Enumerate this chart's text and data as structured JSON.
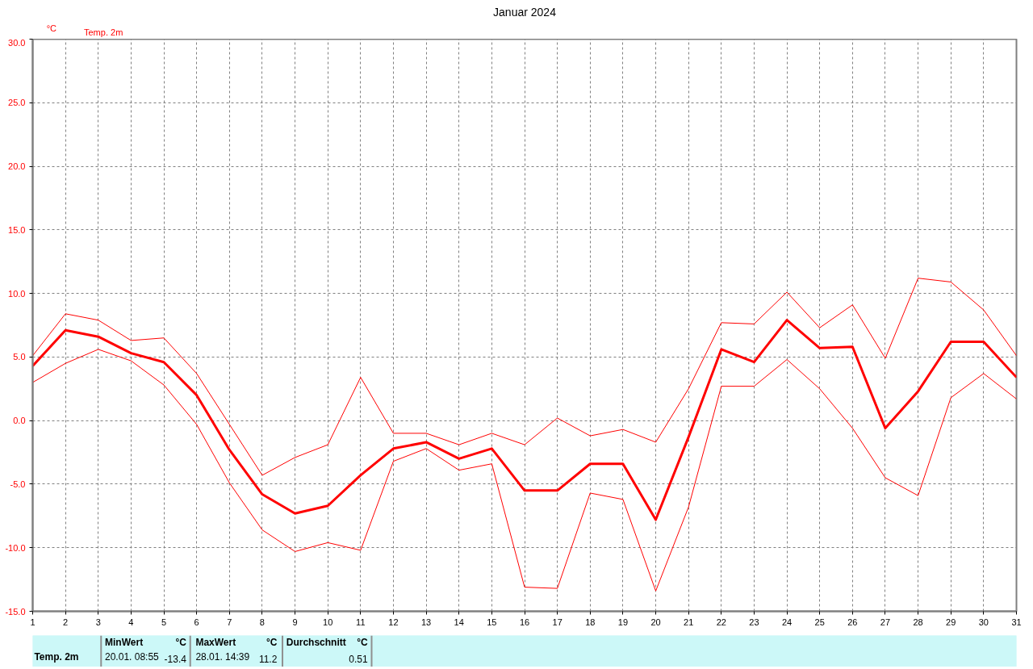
{
  "chart_data": {
    "type": "line",
    "title": "Januar 2024",
    "ylabel": "°C",
    "x": [
      1,
      2,
      3,
      4,
      5,
      6,
      7,
      8,
      9,
      10,
      11,
      12,
      13,
      14,
      15,
      16,
      17,
      18,
      19,
      20,
      21,
      22,
      23,
      24,
      25,
      26,
      27,
      28,
      29,
      30,
      31
    ],
    "series": [
      {
        "name": "Temp. 2m",
        "color": "#ff0000",
        "values": [
          4.3,
          7.1,
          6.6,
          5.3,
          4.6,
          2.0,
          -2.3,
          -5.8,
          -7.3,
          -6.7,
          -4.3,
          -2.2,
          -1.7,
          -3.0,
          -2.2,
          -5.5,
          -5.5,
          -3.4,
          -3.4,
          -7.8,
          -1.3,
          5.6,
          4.6,
          7.9,
          5.7,
          5.8,
          -0.6,
          2.3,
          6.2,
          6.2,
          3.4
        ]
      },
      {
        "color": "#ff0000",
        "values": [
          5.1,
          8.4,
          7.9,
          6.3,
          6.5,
          3.7,
          -0.3,
          -4.3,
          -2.9,
          -1.9,
          3.4,
          -1.0,
          -1.0,
          -1.9,
          -1.0,
          -1.9,
          0.2,
          -1.2,
          -0.7,
          -1.7,
          2.5,
          7.7,
          7.6,
          10.1,
          7.3,
          9.1,
          4.9,
          11.2,
          10.9,
          8.7,
          5.1
        ]
      },
      {
        "color": "#ff0000",
        "values": [
          3.0,
          4.5,
          5.6,
          4.7,
          2.8,
          -0.3,
          -4.9,
          -8.6,
          -10.3,
          -9.6,
          -10.2,
          -3.2,
          -2.2,
          -3.9,
          -3.4,
          -13.1,
          -13.2,
          -5.7,
          -6.2,
          -13.4,
          -6.8,
          2.7,
          2.7,
          4.8,
          2.5,
          -0.6,
          -4.5,
          -5.9,
          1.8,
          3.7,
          1.7
        ]
      }
    ],
    "xlim": [
      1,
      31
    ],
    "xticks": [
      1,
      2,
      3,
      4,
      5,
      6,
      7,
      8,
      9,
      10,
      11,
      12,
      13,
      14,
      15,
      16,
      17,
      18,
      19,
      20,
      21,
      22,
      23,
      24,
      25,
      26,
      27,
      28,
      29,
      30,
      31
    ],
    "ylim": [
      -15,
      30
    ],
    "yticks": [
      {
        "value": -15,
        "label": "-15.0"
      },
      {
        "value": -10,
        "label": "-10.0"
      },
      {
        "value": -5,
        "label": "-5.0"
      },
      {
        "value": 0,
        "label": "0.0"
      },
      {
        "value": 5,
        "label": "5.0"
      },
      {
        "value": 10,
        "label": "10.0"
      },
      {
        "value": 15,
        "label": "15.0"
      },
      {
        "value": 20,
        "label": "20.0"
      },
      {
        "value": 25,
        "label": "25.0"
      },
      {
        "value": 30,
        "label": "30.0"
      }
    ],
    "grid": true,
    "legend": "top left",
    "marker": "none",
    "line_style": "solid",
    "annotations": [
      "Temp. 2m",
      "MinWert",
      "°C",
      "20.01.  08:55",
      "-13.4",
      "MaxWert",
      "°C",
      "28.01.  14:39",
      "11.2",
      "Durchschnitt",
      "°C",
      "0.51"
    ]
  }
}
